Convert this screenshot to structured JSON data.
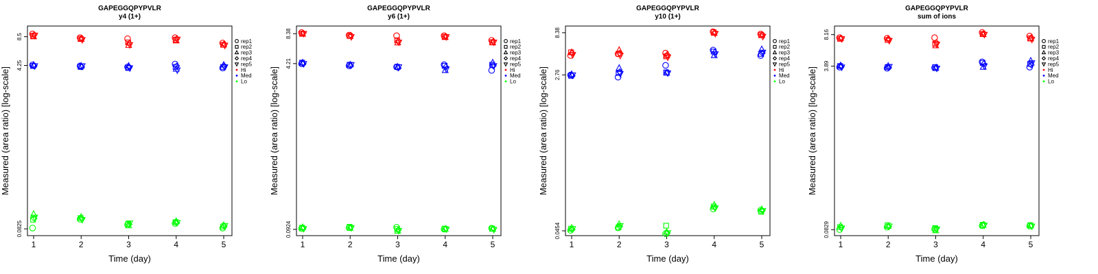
{
  "colors": {
    "Hi": "#ff0000",
    "Med": "#0000ff",
    "Lo": "#00ff00"
  },
  "chart_data": [
    {
      "type": "scatter",
      "title": "GAPEGGQPYPVLR",
      "subtitle": "y4 (1+)",
      "xlabel": "Time (day)",
      "ylabel": "Measured (area ratio) [log-scale]",
      "y_scale": "log",
      "x_ticks": [
        "1",
        "2",
        "3",
        "4",
        "5"
      ],
      "y_ticks": [
        "0.0825",
        "4.25",
        "8.5"
      ],
      "y_tick_values": [
        0.0825,
        4.25,
        8.5
      ],
      "ylim": [
        0.07,
        11
      ],
      "legend": {
        "placement": "right",
        "entries": [
          "rep1",
          "rep2",
          "rep3",
          "rep4",
          "rep5",
          "Hi",
          "Med",
          "Lo"
        ]
      },
      "series": [
        {
          "group": "Hi",
          "rep": "rep1",
          "values": [
            9.1,
            8.3,
            8.1,
            8.3,
            7.3
          ]
        },
        {
          "group": "Hi",
          "rep": "rep2",
          "values": [
            8.7,
            8.1,
            7.4,
            7.9,
            7.0
          ]
        },
        {
          "group": "Hi",
          "rep": "rep3",
          "values": [
            8.5,
            8.0,
            6.9,
            7.7,
            7.0
          ]
        },
        {
          "group": "Hi",
          "rep": "rep4",
          "values": [
            8.9,
            8.2,
            7.2,
            8.1,
            7.1
          ]
        },
        {
          "group": "Hi",
          "rep": "rep5",
          "values": [
            8.8,
            7.9,
            7.0,
            8.0,
            6.9
          ]
        },
        {
          "group": "Med",
          "rep": "rep1",
          "values": [
            4.3,
            4.2,
            4.1,
            4.4,
            4.0
          ]
        },
        {
          "group": "Med",
          "rep": "rep2",
          "values": [
            4.2,
            4.1,
            4.0,
            4.1,
            4.1
          ]
        },
        {
          "group": "Med",
          "rep": "rep3",
          "values": [
            4.3,
            4.2,
            4.2,
            3.9,
            4.3
          ]
        },
        {
          "group": "Med",
          "rep": "rep4",
          "values": [
            4.2,
            4.1,
            4.1,
            4.2,
            4.2
          ]
        },
        {
          "group": "Med",
          "rep": "rep5",
          "values": [
            4.2,
            4.2,
            4.0,
            3.8,
            4.1
          ]
        },
        {
          "group": "Lo",
          "rep": "rep1",
          "values": [
            0.084,
            0.104,
            0.091,
            0.094,
            0.084
          ]
        },
        {
          "group": "Lo",
          "rep": "rep2",
          "values": [
            0.103,
            0.107,
            0.093,
            0.097,
            0.087
          ]
        },
        {
          "group": "Lo",
          "rep": "rep3",
          "values": [
            0.118,
            0.11,
            0.089,
            0.099,
            0.09
          ]
        },
        {
          "group": "Lo",
          "rep": "rep4",
          "values": [
            0.106,
            0.106,
            0.092,
            0.095,
            0.088
          ]
        },
        {
          "group": "Lo",
          "rep": "rep5",
          "values": [
            0.109,
            0.103,
            0.095,
            0.096,
            0.089
          ]
        }
      ]
    },
    {
      "type": "scatter",
      "title": "GAPEGGQPYPVLR",
      "subtitle": "y6 (1+)",
      "xlabel": "Time (day)",
      "ylabel": "Measured (area ratio) [log-scale]",
      "y_scale": "log",
      "x_ticks": [
        "1",
        "2",
        "3",
        "4",
        "5"
      ],
      "y_ticks": [
        "0.0924",
        "4.21",
        "8.38"
      ],
      "y_tick_values": [
        0.0924,
        4.21,
        8.38
      ],
      "ylim": [
        0.08,
        10
      ],
      "legend": {
        "placement": "right",
        "entries": [
          "rep1",
          "rep2",
          "rep3",
          "rep4",
          "rep5",
          "Hi",
          "Med",
          "Lo"
        ]
      },
      "series": [
        {
          "group": "Hi",
          "rep": "rep1",
          "values": [
            8.6,
            8.1,
            8.0,
            8.0,
            7.2
          ]
        },
        {
          "group": "Hi",
          "rep": "rep2",
          "values": [
            8.4,
            8.0,
            7.2,
            7.8,
            6.9
          ]
        },
        {
          "group": "Hi",
          "rep": "rep3",
          "values": [
            8.3,
            7.9,
            6.8,
            7.7,
            6.8
          ]
        },
        {
          "group": "Hi",
          "rep": "rep4",
          "values": [
            8.5,
            8.1,
            7.0,
            7.9,
            7.0
          ]
        },
        {
          "group": "Hi",
          "rep": "rep5",
          "values": [
            8.4,
            7.8,
            6.9,
            7.8,
            6.9
          ]
        },
        {
          "group": "Med",
          "rep": "rep1",
          "values": [
            4.2,
            4.0,
            3.9,
            4.1,
            3.6
          ]
        },
        {
          "group": "Med",
          "rep": "rep2",
          "values": [
            4.3,
            4.1,
            3.9,
            4.0,
            4.1
          ]
        },
        {
          "group": "Med",
          "rep": "rep3",
          "values": [
            4.3,
            4.1,
            3.9,
            3.6,
            4.3
          ]
        },
        {
          "group": "Med",
          "rep": "rep4",
          "values": [
            4.2,
            4.0,
            3.8,
            3.9,
            4.0
          ]
        },
        {
          "group": "Med",
          "rep": "rep5",
          "values": [
            4.2,
            4.1,
            3.9,
            3.7,
            4.0
          ]
        },
        {
          "group": "Lo",
          "rep": "rep1",
          "values": [
            0.094,
            0.096,
            0.097,
            0.093,
            0.095
          ]
        },
        {
          "group": "Lo",
          "rep": "rep2",
          "values": [
            0.096,
            0.098,
            0.093,
            0.094,
            0.094
          ]
        },
        {
          "group": "Lo",
          "rep": "rep3",
          "values": [
            0.097,
            0.095,
            0.089,
            0.093,
            0.093
          ]
        },
        {
          "group": "Lo",
          "rep": "rep4",
          "values": [
            0.095,
            0.097,
            0.091,
            0.094,
            0.094
          ]
        },
        {
          "group": "Lo",
          "rep": "rep5",
          "values": [
            0.094,
            0.096,
            0.09,
            0.093,
            0.092
          ]
        }
      ]
    },
    {
      "type": "scatter",
      "title": "GAPEGGQPYPVLR",
      "subtitle": "y10 (1+)",
      "xlabel": "Time (day)",
      "ylabel": "Measured (area ratio) [log-scale]",
      "y_scale": "log",
      "x_ticks": [
        "1",
        "2",
        "3",
        "4",
        "5"
      ],
      "y_ticks": [
        "0.0454",
        "2.76",
        "8.38"
      ],
      "y_tick_values": [
        0.0454,
        2.76,
        8.38
      ],
      "ylim": [
        0.04,
        10
      ],
      "legend": {
        "placement": "right",
        "entries": [
          "rep1",
          "rep2",
          "rep3",
          "rep4",
          "rep5",
          "Hi",
          "Med",
          "Lo"
        ]
      },
      "series": [
        {
          "group": "Hi",
          "rep": "rep1",
          "values": [
            4.6,
            4.8,
            4.9,
            8.6,
            8.1
          ]
        },
        {
          "group": "Hi",
          "rep": "rep2",
          "values": [
            5.0,
            4.8,
            4.5,
            8.5,
            7.9
          ]
        },
        {
          "group": "Hi",
          "rep": "rep3",
          "values": [
            5.0,
            5.3,
            4.6,
            8.3,
            7.8
          ]
        },
        {
          "group": "Hi",
          "rep": "rep4",
          "values": [
            4.9,
            4.9,
            4.7,
            8.4,
            8.0
          ]
        },
        {
          "group": "Hi",
          "rep": "rep5",
          "values": [
            4.7,
            4.6,
            4.4,
            8.2,
            7.6
          ]
        },
        {
          "group": "Med",
          "rep": "rep1",
          "values": [
            2.75,
            2.6,
            3.55,
            5.3,
            4.6
          ]
        },
        {
          "group": "Med",
          "rep": "rep2",
          "values": [
            2.7,
            2.9,
            2.95,
            5.1,
            4.8
          ]
        },
        {
          "group": "Med",
          "rep": "rep3",
          "values": [
            2.8,
            3.3,
            2.9,
            4.6,
            5.4
          ]
        },
        {
          "group": "Med",
          "rep": "rep4",
          "values": [
            2.7,
            3.0,
            2.95,
            5.0,
            4.9
          ]
        },
        {
          "group": "Med",
          "rep": "rep5",
          "values": [
            2.75,
            2.85,
            2.9,
            4.8,
            5.0
          ]
        },
        {
          "group": "Lo",
          "rep": "rep1",
          "values": [
            0.046,
            0.049,
            0.042,
            0.081,
            0.078
          ]
        },
        {
          "group": "Lo",
          "rep": "rep2",
          "values": [
            0.048,
            0.05,
            0.052,
            0.086,
            0.075
          ]
        },
        {
          "group": "Lo",
          "rep": "rep3",
          "values": [
            0.049,
            0.054,
            0.044,
            0.09,
            0.08
          ]
        },
        {
          "group": "Lo",
          "rep": "rep4",
          "values": [
            0.047,
            0.051,
            0.043,
            0.084,
            0.078
          ]
        },
        {
          "group": "Lo",
          "rep": "rep5",
          "values": [
            0.048,
            0.052,
            0.043,
            0.083,
            0.077
          ]
        }
      ]
    },
    {
      "type": "scatter",
      "title": "GAPEGGQPYPVLR",
      "subtitle": "sum of ions",
      "xlabel": "Time (day)",
      "ylabel": "Measured (area ratio) [log-scale]",
      "y_scale": "log",
      "x_ticks": [
        "1",
        "2",
        "3",
        "4",
        "5"
      ],
      "y_ticks": [
        "0.0829",
        "3.89",
        "8.16"
      ],
      "y_tick_values": [
        0.0829,
        3.89,
        8.16
      ],
      "ylim": [
        0.072,
        10
      ],
      "legend": {
        "placement": "right",
        "entries": [
          "rep1",
          "rep2",
          "rep3",
          "rep4",
          "rep5",
          "Hi",
          "Med",
          "Lo"
        ]
      },
      "series": [
        {
          "group": "Hi",
          "rep": "rep1",
          "values": [
            7.6,
            7.5,
            7.6,
            8.6,
            7.9
          ]
        },
        {
          "group": "Hi",
          "rep": "rep2",
          "values": [
            7.4,
            7.2,
            6.6,
            8.3,
            7.5
          ]
        },
        {
          "group": "Hi",
          "rep": "rep3",
          "values": [
            7.5,
            7.4,
            6.3,
            8.2,
            7.4
          ]
        },
        {
          "group": "Hi",
          "rep": "rep4",
          "values": [
            7.5,
            7.3,
            6.8,
            8.4,
            7.6
          ]
        },
        {
          "group": "Hi",
          "rep": "rep5",
          "values": [
            7.4,
            7.1,
            6.5,
            8.2,
            7.3
          ]
        },
        {
          "group": "Med",
          "rep": "rep1",
          "values": [
            3.8,
            3.7,
            3.75,
            4.3,
            3.8
          ]
        },
        {
          "group": "Med",
          "rep": "rep2",
          "values": [
            3.9,
            3.8,
            3.8,
            4.2,
            4.1
          ]
        },
        {
          "group": "Med",
          "rep": "rep3",
          "values": [
            3.95,
            3.9,
            3.7,
            3.8,
            4.4
          ]
        },
        {
          "group": "Med",
          "rep": "rep4",
          "values": [
            3.85,
            3.75,
            3.8,
            4.1,
            4.0
          ]
        },
        {
          "group": "Med",
          "rep": "rep5",
          "values": [
            3.8,
            3.85,
            3.7,
            3.9,
            4.2
          ]
        },
        {
          "group": "Lo",
          "rep": "rep1",
          "values": [
            0.083,
            0.088,
            0.084,
            0.091,
            0.09
          ]
        },
        {
          "group": "Lo",
          "rep": "rep2",
          "values": [
            0.088,
            0.092,
            0.086,
            0.093,
            0.092
          ]
        },
        {
          "group": "Lo",
          "rep": "rep3",
          "values": [
            0.091,
            0.09,
            0.081,
            0.092,
            0.091
          ]
        },
        {
          "group": "Lo",
          "rep": "rep4",
          "values": [
            0.087,
            0.089,
            0.085,
            0.094,
            0.091
          ]
        },
        {
          "group": "Lo",
          "rep": "rep5",
          "values": [
            0.086,
            0.09,
            0.084,
            0.092,
            0.09
          ]
        }
      ]
    }
  ]
}
